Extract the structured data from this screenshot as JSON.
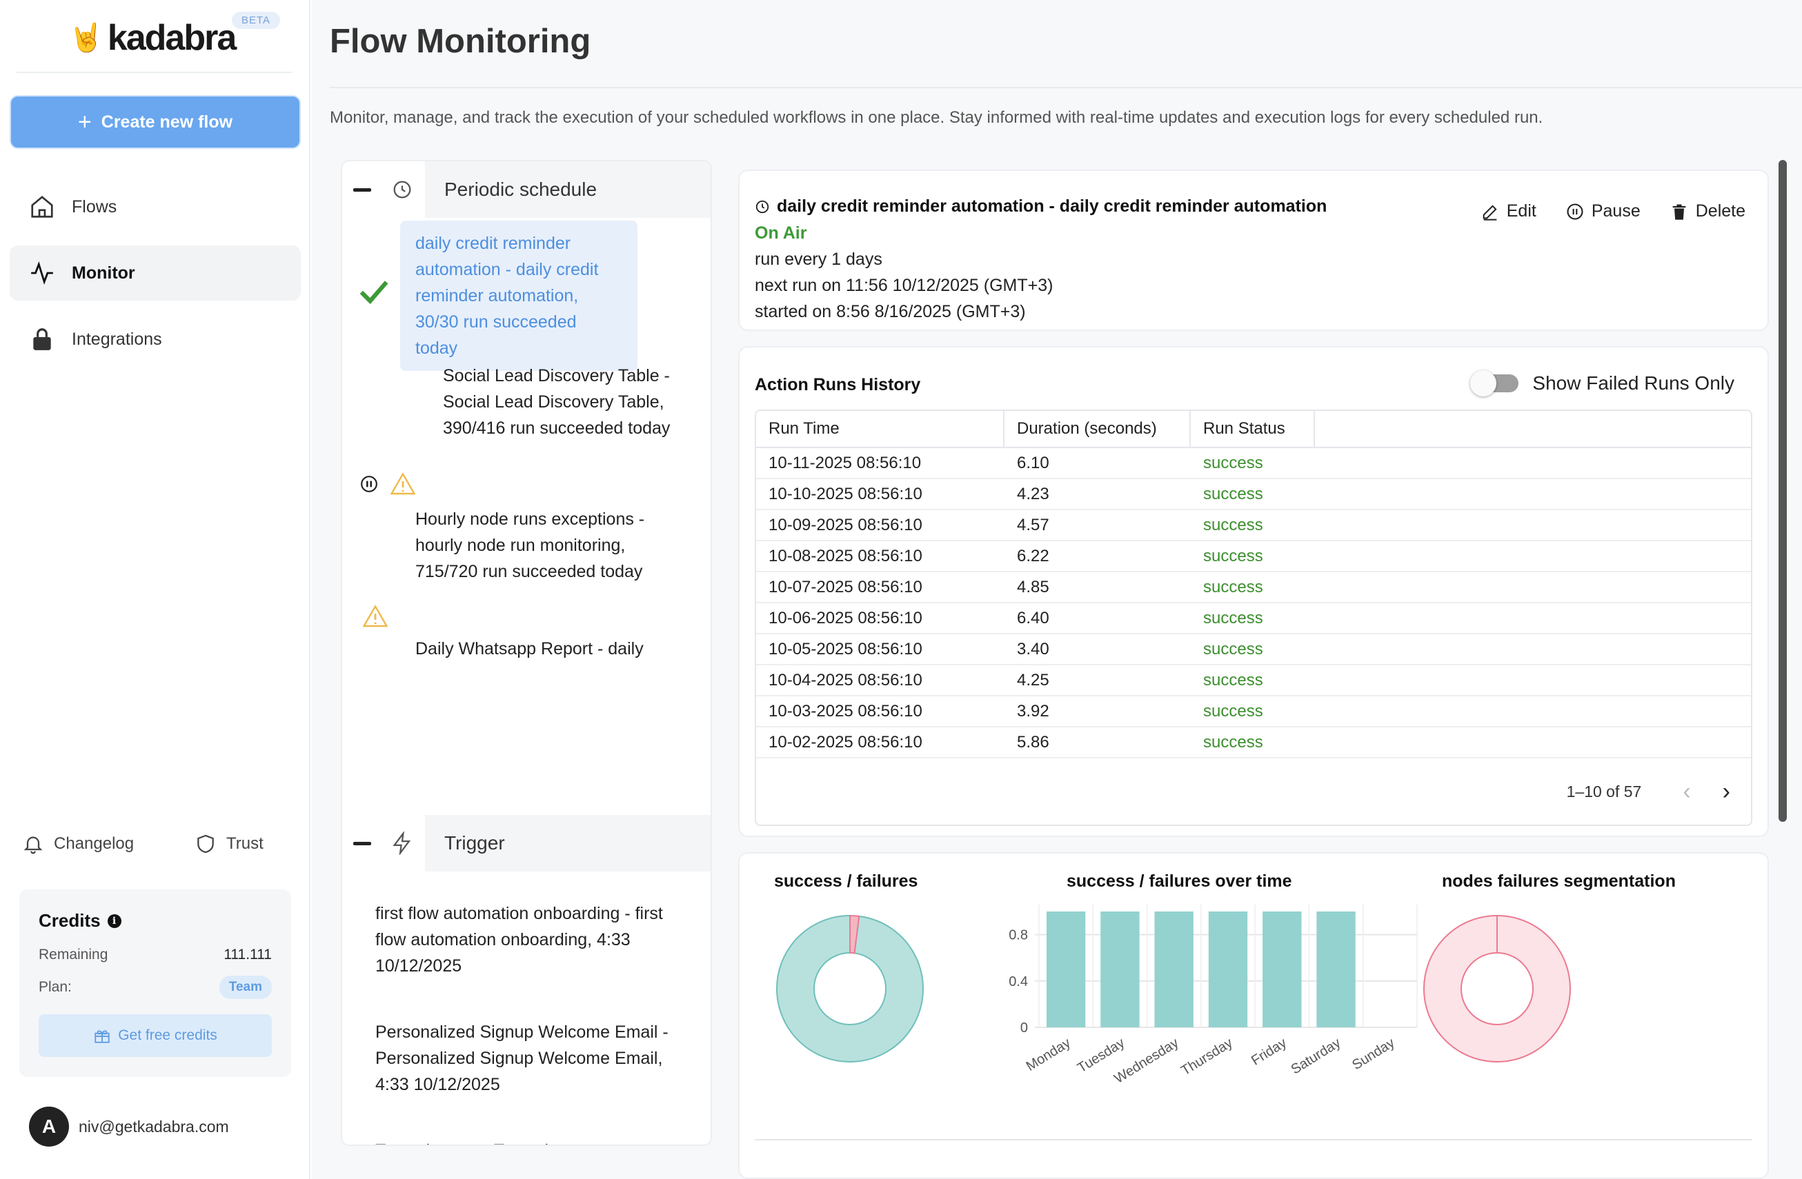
{
  "brand": {
    "name": "kadabra",
    "badge": "BETA"
  },
  "sidebar": {
    "create_label": "Create new flow",
    "items": [
      {
        "label": "Flows",
        "icon": "home-icon"
      },
      {
        "label": "Monitor",
        "icon": "activity-icon"
      },
      {
        "label": "Integrations",
        "icon": "lock-icon"
      }
    ],
    "footer": {
      "changelog": "Changelog",
      "trust": "Trust"
    },
    "credits": {
      "title": "Credits",
      "remaining_label": "Remaining",
      "remaining_value": "111.111",
      "plan_label": "Plan:",
      "plan_value": "Team",
      "free_label": "Get free credits"
    },
    "user": {
      "initial": "A",
      "email": "niv@getkadabra.com"
    }
  },
  "page": {
    "title": "Flow Monitoring",
    "description": "Monitor, manage, and track the execution of your scheduled workflows in one place. Stay informed with real-time updates and execution logs for every scheduled run."
  },
  "groups": {
    "periodic": {
      "label": "Periodic schedule",
      "items": [
        {
          "text": "daily credit reminder automation - daily credit reminder automation, 30/30 run succeeded today",
          "status": "success"
        },
        {
          "text": "Social Lead Discovery Table - Social Lead Discovery Table, 390/416 run succeeded today",
          "status": "paused-warning"
        },
        {
          "text": "Hourly node runs exceptions - hourly node run monitoring, 715/720 run succeeded today",
          "status": "warning"
        },
        {
          "text": "Daily Whatsapp Report - daily",
          "status": "none"
        }
      ]
    },
    "trigger": {
      "label": "Trigger",
      "items": [
        {
          "text": "first flow automation onboarding - first flow automation onboarding, 4:33 10/12/2025"
        },
        {
          "text": "Personalized Signup Welcome Email - Personalized Signup Welcome Email, 4:33 10/12/2025"
        },
        {
          "text": "Test telegram - Test telegram,"
        }
      ]
    }
  },
  "detail": {
    "title": "daily credit reminder automation - daily credit reminder automation",
    "status": "On Air",
    "frequency": "run every 1 days",
    "next_run": "next run on 11:56 10/12/2025 (GMT+3)",
    "started": "started on 8:56 8/16/2025 (GMT+3)",
    "actions": {
      "edit": "Edit",
      "pause": "Pause",
      "delete": "Delete"
    }
  },
  "history": {
    "title": "Action Runs History",
    "toggle_label": "Show Failed Runs Only",
    "toggle_on": false,
    "columns": [
      "Run Time",
      "Duration (seconds)",
      "Run Status"
    ],
    "rows": [
      [
        "10-11-2025 08:56:10",
        "6.10",
        "success"
      ],
      [
        "10-10-2025 08:56:10",
        "4.23",
        "success"
      ],
      [
        "10-09-2025 08:56:10",
        "4.57",
        "success"
      ],
      [
        "10-08-2025 08:56:10",
        "6.22",
        "success"
      ],
      [
        "10-07-2025 08:56:10",
        "4.85",
        "success"
      ],
      [
        "10-06-2025 08:56:10",
        "6.40",
        "success"
      ],
      [
        "10-05-2025 08:56:10",
        "3.40",
        "success"
      ],
      [
        "10-04-2025 08:56:10",
        "4.25",
        "success"
      ],
      [
        "10-03-2025 08:56:10",
        "3.92",
        "success"
      ],
      [
        "10-02-2025 08:56:10",
        "5.86",
        "success"
      ]
    ],
    "pagination": "1–10 of 57"
  },
  "colors": {
    "accent": "#6aa7ef",
    "success": "#3d9a37",
    "teal": "#8fd1cd",
    "pink": "#f7dce1",
    "pink_stroke": "#ec7a91"
  },
  "chart_data": [
    {
      "type": "pie",
      "title": "success / failures",
      "categories": [
        "success",
        "failures"
      ],
      "values": [
        98,
        2
      ]
    },
    {
      "type": "bar",
      "title": "success / failures over time",
      "categories": [
        "Monday",
        "Tuesday",
        "Wednesday",
        "Thursday",
        "Friday",
        "Saturday",
        "Sunday"
      ],
      "values": [
        1,
        1,
        1,
        1,
        1,
        1,
        0
      ],
      "yticks": [
        "0",
        "0.4",
        "0.8"
      ],
      "ylim": [
        0,
        1
      ]
    },
    {
      "type": "pie",
      "title": "nodes failures segmentation",
      "categories": [
        ""
      ],
      "values": [
        100
      ]
    }
  ]
}
